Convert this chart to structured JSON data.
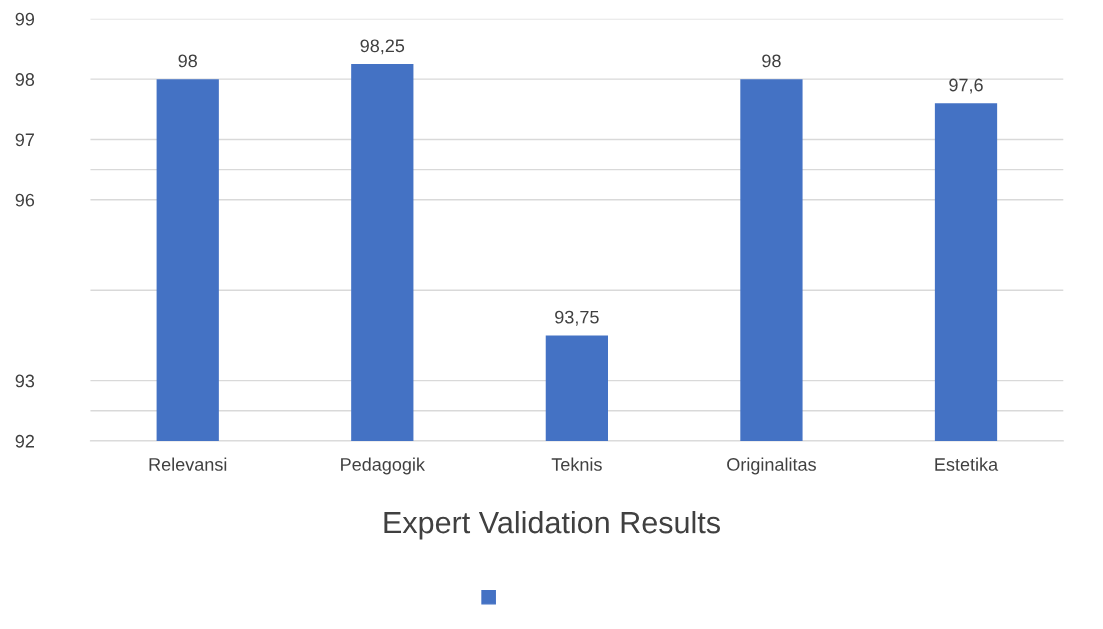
{
  "chart_data": {
    "type": "bar",
    "title": "Expert Validation Results",
    "categories": [
      "Relevansi",
      "Pedagogik",
      "Teknis",
      "Originalitas",
      "Estetika"
    ],
    "series": [
      {
        "color": "#4472c4",
        "values": [
          98,
          98.25,
          93.75,
          98,
          97.6
        ]
      }
    ],
    "value_labels": [
      "98",
      "98,25",
      "93,75",
      "98",
      "97,6"
    ],
    "ylim": [
      92,
      99
    ],
    "yticks": [
      92,
      {
        "value": 92.5,
        "label": null
      },
      93,
      {
        "value": 94.5,
        "label": null
      },
      96,
      {
        "value": 96.5,
        "label": null
      },
      97,
      98,
      99
    ],
    "grid": "y"
  }
}
